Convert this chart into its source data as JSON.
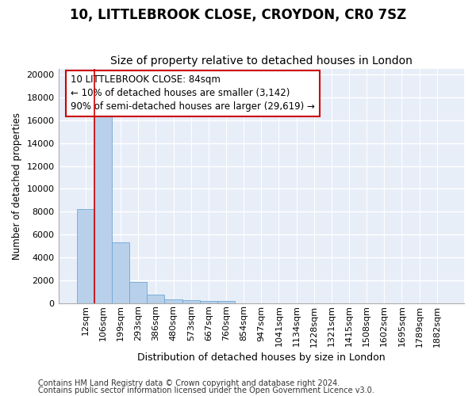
{
  "title1": "10, LITTLEBROOK CLOSE, CROYDON, CR0 7SZ",
  "title2": "Size of property relative to detached houses in London",
  "xlabel": "Distribution of detached houses by size in London",
  "ylabel": "Number of detached properties",
  "categories": [
    "12sqm",
    "106sqm",
    "199sqm",
    "293sqm",
    "386sqm",
    "480sqm",
    "573sqm",
    "667sqm",
    "760sqm",
    "854sqm",
    "947sqm",
    "1041sqm",
    "1134sqm",
    "1228sqm",
    "1321sqm",
    "1415sqm",
    "1508sqm",
    "1602sqm",
    "1695sqm",
    "1789sqm",
    "1882sqm"
  ],
  "values": [
    8200,
    16600,
    5300,
    1850,
    750,
    350,
    280,
    210,
    170,
    0,
    0,
    0,
    0,
    0,
    0,
    0,
    0,
    0,
    0,
    0,
    0
  ],
  "bar_color": "#b8d0ea",
  "bar_edge_color": "#6fa8d6",
  "property_line_color": "#cc0000",
  "background_color": "#e8eef8",
  "grid_color": "#ffffff",
  "annotation_text": "10 LITTLEBROOK CLOSE: 84sqm\n← 10% of detached houses are smaller (3,142)\n90% of semi-detached houses are larger (29,619) →",
  "annotation_box_facecolor": "#ffffff",
  "annotation_border_color": "#cc0000",
  "ylim": [
    0,
    20500
  ],
  "yticks": [
    0,
    2000,
    4000,
    6000,
    8000,
    10000,
    12000,
    14000,
    16000,
    18000,
    20000
  ],
  "footer1": "Contains HM Land Registry data © Crown copyright and database right 2024.",
  "footer2": "Contains public sector information licensed under the Open Government Licence v3.0.",
  "title1_fontsize": 12,
  "title2_fontsize": 10,
  "xlabel_fontsize": 9,
  "ylabel_fontsize": 8.5,
  "tick_fontsize": 8,
  "annotation_fontsize": 8.5,
  "footer_fontsize": 7
}
